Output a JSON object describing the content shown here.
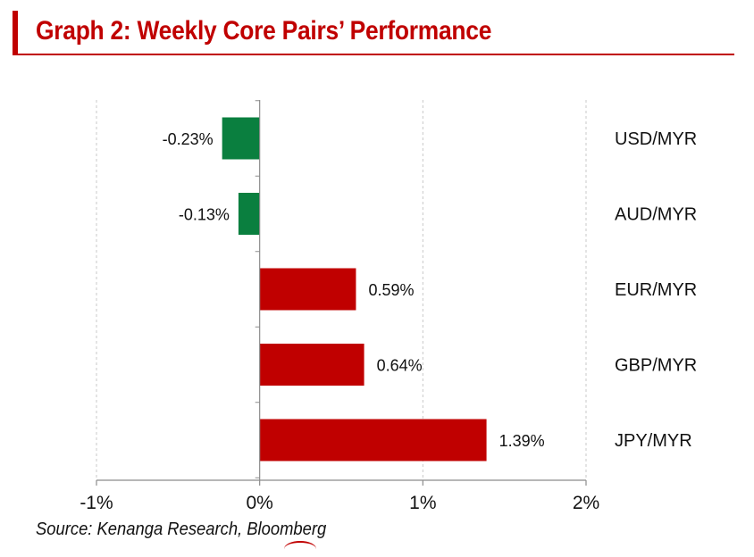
{
  "header": {
    "title": "Graph 2: Weekly Core Pairs’ Performance",
    "accent_color": "#c00000"
  },
  "chart_data": {
    "type": "bar",
    "orientation": "horizontal",
    "title": "Graph 2: Weekly Core Pairs’ Performance",
    "xlabel": "",
    "ylabel": "",
    "categories": [
      "USD/MYR",
      "AUD/MYR",
      "EUR/MYR",
      "GBP/MYR",
      "JPY/MYR"
    ],
    "values": [
      -0.23,
      -0.13,
      0.59,
      0.64,
      1.39
    ],
    "value_labels": [
      "-0.23%",
      "-0.13%",
      "0.59%",
      "0.64%",
      "1.39%"
    ],
    "xlim": [
      -1,
      2
    ],
    "x_ticks": [
      -1,
      0,
      1,
      2
    ],
    "x_tick_labels": [
      "-1%",
      "0%",
      "1%",
      "2%"
    ],
    "grid": "vertical dashed",
    "category_labels_position": "right",
    "colors": {
      "negative": "#0a7f3f",
      "positive": "#c00000"
    }
  },
  "footer": {
    "source": "Source: Kenanga Research, Bloomberg"
  }
}
